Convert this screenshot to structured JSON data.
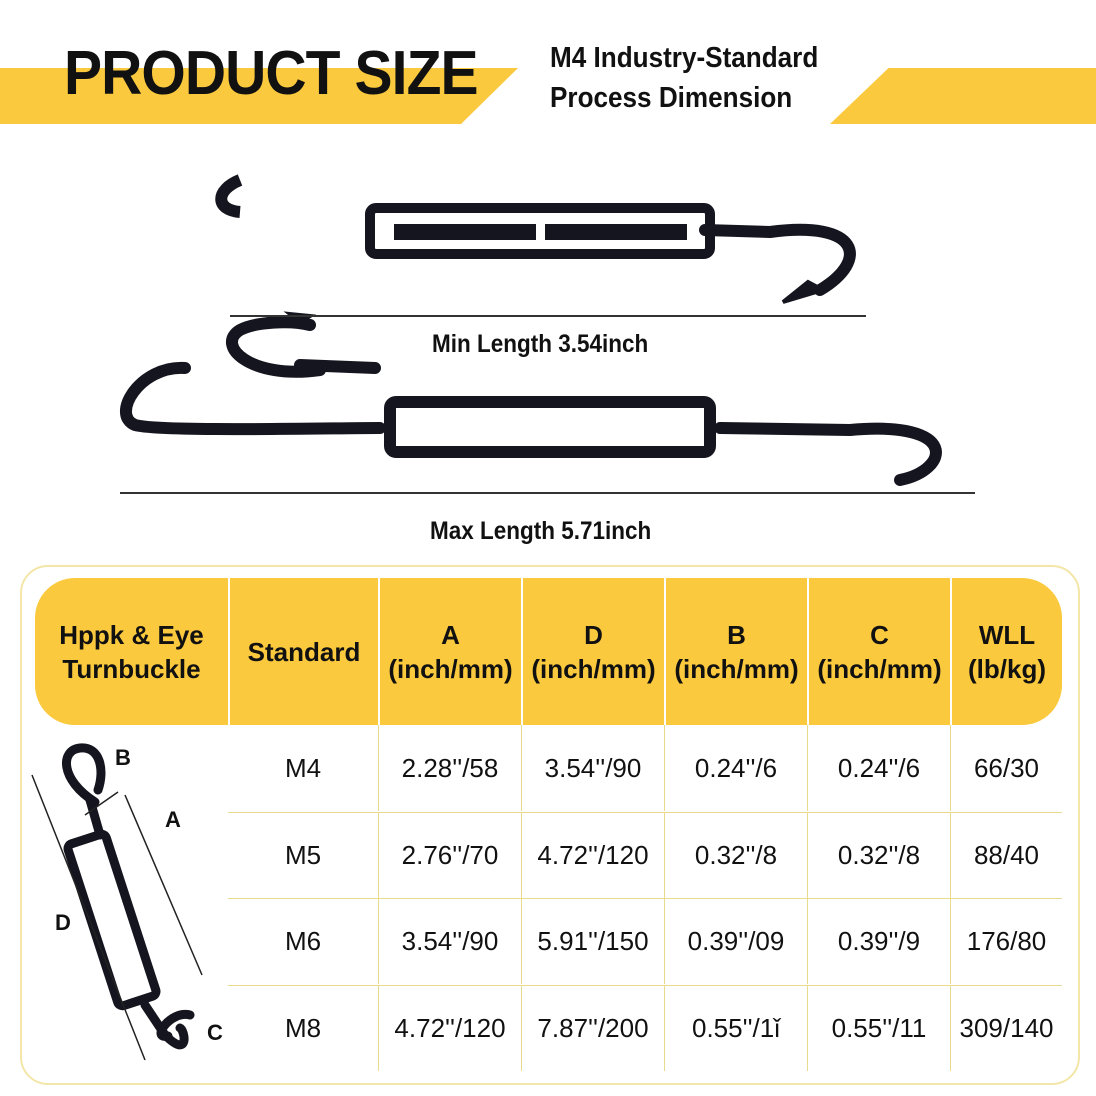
{
  "header": {
    "title": "PRODUCT SIZE",
    "subtitle_line1": "M4 Industry-Standard",
    "subtitle_line2": "Process Dimension",
    "accent": "#fbc93d"
  },
  "min_length": "Min Length 3.54inch",
  "max_length": "Max Length 5.71inch",
  "diagram_labels": {
    "a": "A",
    "b": "B",
    "c": "C",
    "d": "D"
  },
  "table": {
    "headers": [
      "Hppk & Eye Turnbuckle",
      "Standard",
      "A (inch/mm)",
      "D (inch/mm)",
      "B (inch/mm)",
      "C (inch/mm)",
      "WLL (lb/kg)"
    ],
    "rows": [
      [
        "M4",
        "2.28''/58",
        "3.54''/90",
        "0.24''/6",
        "0.24''/6",
        "66/30"
      ],
      [
        "M5",
        "2.76''/70",
        "4.72''/120",
        "0.32''/8",
        "0.32''/8",
        "88/40"
      ],
      [
        "M6",
        "3.54''/90",
        "5.91''/150",
        "0.39''/09",
        "0.39''/9",
        "176/80"
      ],
      [
        "M8",
        "4.72''/120",
        "7.87''/200",
        "0.55''/1ǐ",
        "0.55''/11",
        "309/140"
      ]
    ]
  }
}
